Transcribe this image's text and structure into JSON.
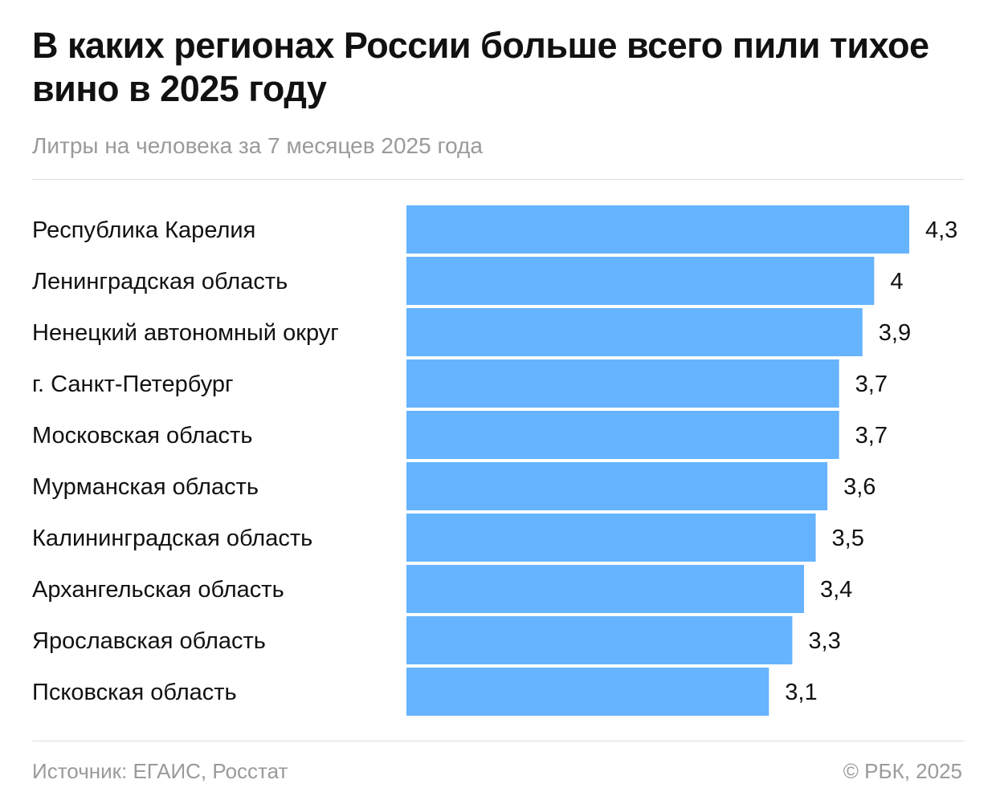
{
  "title": "В каких регионах России больше всего пили тихое вино в 2025 году",
  "subtitle": "Литры на человека за 7 месяцев 2025 года",
  "footer": {
    "source": "Источник: ЕГАИС, Росстат",
    "copyright": "© РБК, 2025"
  },
  "colors": {
    "bar": "#66b3ff",
    "text": "#111111",
    "muted": "#9a9a9a"
  },
  "chart_data": {
    "type": "bar",
    "orientation": "horizontal",
    "title": "В каких регионах России больше всего пили тихое вино в 2025 году",
    "subtitle": "Литры на человека за 7 месяцев 2025 года",
    "categories": [
      "Республика Карелия",
      "Ленинградская область",
      "Ненецкий автономный округ",
      "г. Санкт-Петербург",
      "Московская область",
      "Мурманская область",
      "Калининградская область",
      "Архангельская область",
      "Ярославская область",
      "Псковская область"
    ],
    "values": [
      4.3,
      4,
      3.9,
      3.7,
      3.7,
      3.6,
      3.5,
      3.4,
      3.3,
      3.1
    ],
    "labels": [
      "4,3",
      "4",
      "3,9",
      "3,7",
      "3,7",
      "3,6",
      "3,5",
      "3,4",
      "3,3",
      "3,1"
    ],
    "xlim": [
      0,
      4.3
    ],
    "grid": false,
    "legend": "none"
  }
}
